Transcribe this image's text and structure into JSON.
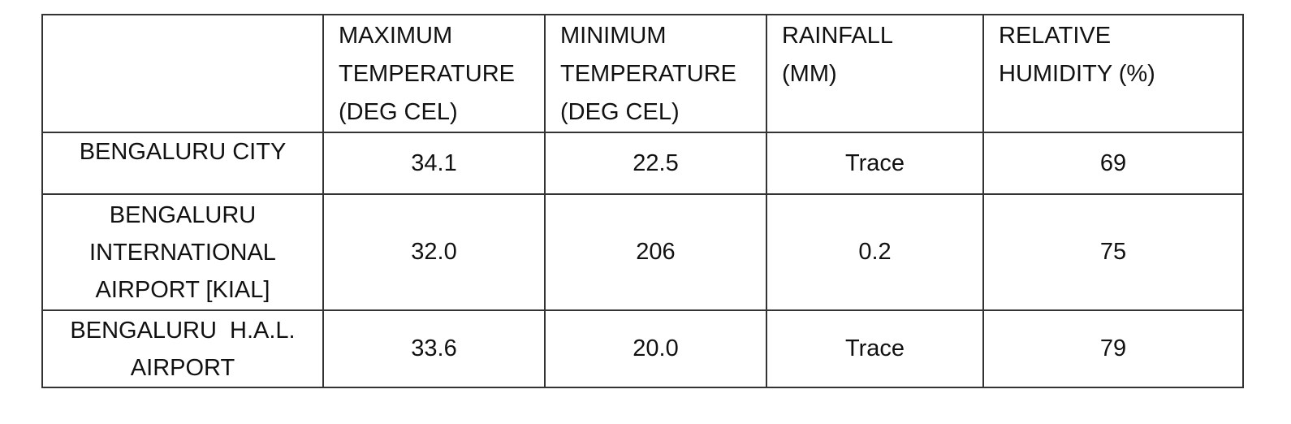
{
  "table": {
    "header": [
      [],
      [
        "MAXIMUM",
        "TEMPERATURE",
        "(DEG CEL)"
      ],
      [
        "MINIMUM",
        "TEMPERATURE",
        "(DEG CEL)"
      ],
      [
        "RAINFALL",
        "(MM)"
      ],
      [
        "RELATIVE",
        "HUMIDITY (%)"
      ]
    ],
    "rows": [
      [
        [
          "BENGALURU CITY"
        ],
        [
          "34.1"
        ],
        [
          "22.5"
        ],
        [
          "Trace"
        ],
        [
          "69"
        ]
      ],
      [
        [
          "BENGALURU",
          "INTERNATIONAL",
          "AIRPORT [KIAL]"
        ],
        [
          "32.0"
        ],
        [
          "206"
        ],
        [
          "0.2"
        ],
        [
          "75"
        ]
      ],
      [
        [
          "BENGALURU  H.A.L.",
          "AIRPORT"
        ],
        [
          "33.6"
        ],
        [
          "20.0"
        ],
        [
          "Trace"
        ],
        [
          "79"
        ]
      ]
    ]
  }
}
